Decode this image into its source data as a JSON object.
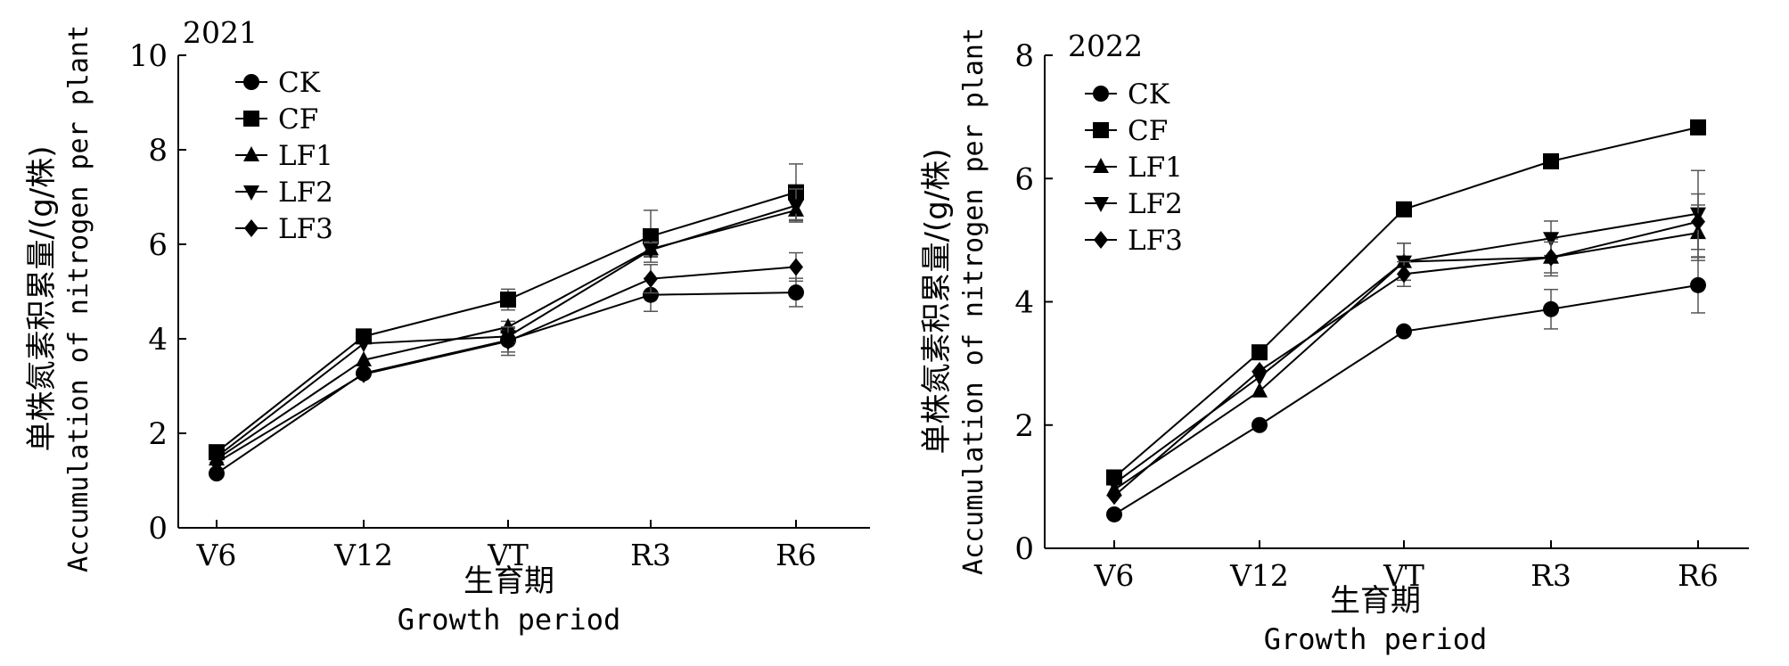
{
  "chart_data": [
    {
      "type": "line",
      "title": "2021",
      "xlabel_cn": "生育期",
      "xlabel_en": "Growth period",
      "ylabel_cn": "单株氮素积累量/(g/株)",
      "ylabel_en": "Accumulation of nitrogen per plant",
      "categories": [
        "V6",
        "V12",
        "VT",
        "R3",
        "R6"
      ],
      "ylim": [
        0,
        10
      ],
      "yticks": [
        "0",
        "2",
        "4",
        "6",
        "8",
        "10"
      ],
      "grid": false,
      "legend_position": "top-left",
      "series": [
        {
          "name": "CK",
          "marker": "circle",
          "values": [
            1.15,
            3.27,
            3.97,
            4.93,
            4.98
          ],
          "errors": [
            0.05,
            0.05,
            0.25,
            0.35,
            0.3
          ]
        },
        {
          "name": "CF",
          "marker": "square",
          "values": [
            1.6,
            4.05,
            4.83,
            6.17,
            7.1
          ],
          "errors": [
            0.05,
            0.05,
            0.22,
            0.55,
            0.6
          ]
        },
        {
          "name": "LF1",
          "marker": "triangle-up",
          "values": [
            1.45,
            3.55,
            4.25,
            5.9,
            6.72
          ],
          "errors": [
            0.05,
            0.05,
            0.12,
            0.15,
            0.2
          ]
        },
        {
          "name": "LF2",
          "marker": "triangle-down",
          "values": [
            1.5,
            3.9,
            4.05,
            5.88,
            6.82
          ],
          "errors": [
            0.05,
            0.05,
            0.12,
            0.15,
            0.35
          ]
        },
        {
          "name": "LF3",
          "marker": "diamond",
          "values": [
            1.38,
            3.25,
            3.95,
            5.27,
            5.52
          ],
          "errors": [
            0.05,
            0.05,
            0.3,
            0.3,
            0.3
          ]
        }
      ]
    },
    {
      "type": "line",
      "title": "2022",
      "xlabel_cn": "生育期",
      "xlabel_en": "Growth period",
      "ylabel_cn": "单株氮素积累量/(g/株)",
      "ylabel_en": "Accumulation of nitrogen per plant",
      "categories": [
        "V6",
        "V12",
        "VT",
        "R3",
        "R6"
      ],
      "ylim": [
        0,
        8
      ],
      "yticks": [
        "0",
        "2",
        "4",
        "6",
        "8"
      ],
      "grid": false,
      "legend_position": "top-left",
      "series": [
        {
          "name": "CK",
          "marker": "circle",
          "values": [
            0.55,
            2.0,
            3.52,
            3.88,
            4.27
          ],
          "errors": [
            0.05,
            0.05,
            0.05,
            0.32,
            0.45
          ]
        },
        {
          "name": "CF",
          "marker": "square",
          "values": [
            1.15,
            3.18,
            5.5,
            6.28,
            6.83
          ],
          "errors": [
            0.05,
            0.05,
            0.05,
            0.05,
            0.05
          ]
        },
        {
          "name": "LF1",
          "marker": "triangle-up",
          "values": [
            0.95,
            2.55,
            4.65,
            4.72,
            5.12
          ],
          "errors": [
            0.05,
            0.05,
            0.3,
            0.3,
            0.45
          ]
        },
        {
          "name": "LF2",
          "marker": "triangle-down",
          "values": [
            1.05,
            2.78,
            4.65,
            5.03,
            5.43
          ],
          "errors": [
            0.05,
            0.05,
            0.3,
            0.28,
            0.7
          ]
        },
        {
          "name": "LF3",
          "marker": "diamond",
          "values": [
            0.85,
            2.88,
            4.45,
            4.72,
            5.3
          ],
          "errors": [
            0.05,
            0.05,
            0.2,
            0.25,
            0.45
          ]
        }
      ]
    }
  ]
}
